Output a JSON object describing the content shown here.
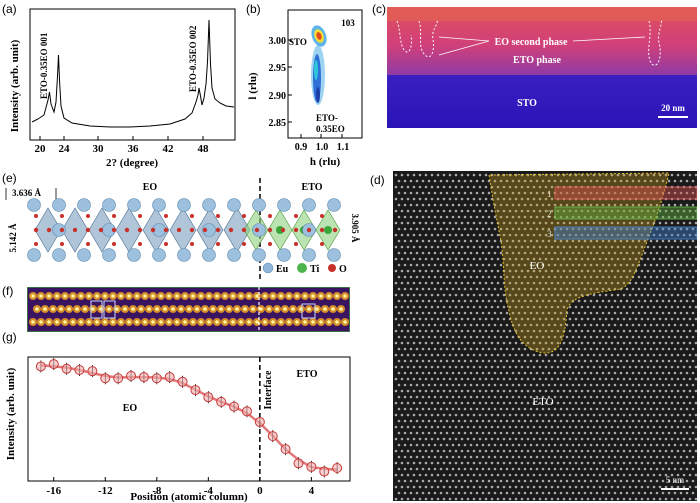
{
  "panel_labels": {
    "a": "(a)",
    "b": "(b)",
    "c": "(c)",
    "d": "(d)",
    "e": "(e)",
    "f": "(f)",
    "g": "(g)"
  },
  "panel_a": {
    "ylabel": "Intensity (arb. unit)",
    "xlabel": "2? (degree)",
    "xticks": [
      "20",
      "24",
      "30",
      "36",
      "42",
      "48"
    ],
    "peak1_label": "ETO-0.35EO 001",
    "peak2_label": "ETO-0.35EO 002"
  },
  "panel_b": {
    "ylabel": "l (rlu)",
    "xlabel": "h (rlu)",
    "yticks": [
      "3.00",
      "2.95",
      "2.90",
      "2.85"
    ],
    "xticks": [
      "0.9",
      "1.0",
      "1.1"
    ],
    "reflection": "103",
    "sto": "STO",
    "eto": "ETO-",
    "eto2": "0.35EO"
  },
  "panel_c": {
    "eo_phase": "EO second phase",
    "eto_phase": "ETO phase",
    "sto": "STO",
    "scale": "20 nm"
  },
  "panel_d": {
    "eo": "EO",
    "eto": "ETO",
    "rows": [
      "1",
      "2",
      "3"
    ],
    "scale": "5 nm"
  },
  "panel_e": {
    "eo": "EO",
    "eto": "ETO",
    "dim1": "3.636 Å",
    "dim2": "5.142 Å",
    "dim3": "3.905 Å",
    "legend_eu": "Eu",
    "legend_ti": "Ti",
    "legend_o": "O"
  },
  "chart_data": {
    "type": "scatter",
    "xlabel": "Position (atomic column)",
    "ylabel": "Intensity (arb. unit)",
    "xlim": [
      -18,
      7
    ],
    "xticks": [
      "-16",
      "-12",
      "-8",
      "-4",
      "0",
      "4"
    ],
    "region_left": "EO",
    "region_right": "ETO",
    "interface": "Interface",
    "x": [
      -17,
      -16,
      -15,
      -14,
      -13,
      -12,
      -11,
      -10,
      -9,
      -8,
      -7,
      -6,
      -5,
      -4,
      -3,
      -2,
      -1,
      0,
      1,
      2,
      3,
      4,
      5,
      6
    ],
    "y": [
      0.92,
      0.94,
      0.9,
      0.89,
      0.88,
      0.82,
      0.82,
      0.84,
      0.83,
      0.82,
      0.83,
      0.79,
      0.72,
      0.66,
      0.62,
      0.58,
      0.54,
      0.45,
      0.33,
      0.22,
      0.1,
      0.07,
      0.03,
      0.06
    ],
    "ylim": [
      -0.05,
      1.0
    ]
  }
}
